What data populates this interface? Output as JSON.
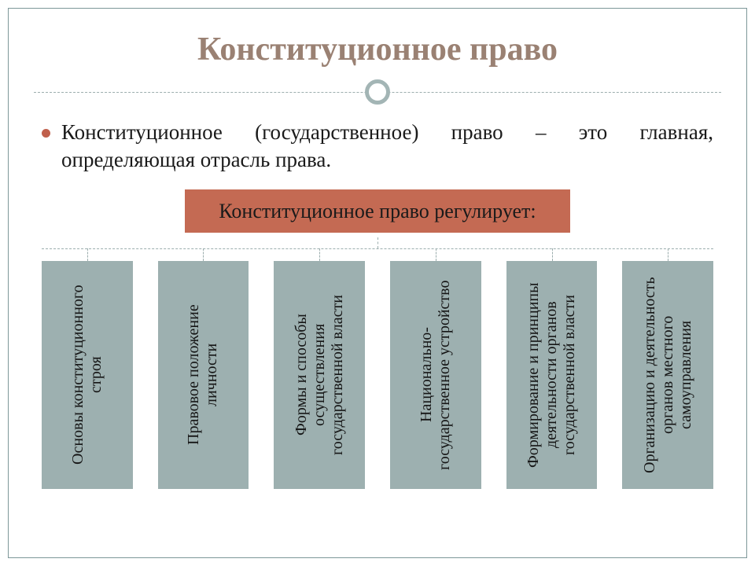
{
  "slide": {
    "title": "Конституционное право",
    "title_color": "#9a8173",
    "title_fontsize": 42,
    "definition": "Конституционное (государственное) право – это главная, определяющая отрасль права.",
    "bullet_color": "#c0604c"
  },
  "diagram": {
    "type": "tree",
    "root": {
      "label": "Конституционное право регулирует:",
      "bg_color": "#c46a53",
      "shadow_color": "#9fb1b1"
    },
    "children_bg_color": "#9db0b0",
    "children_shadow_color": "#7e9698",
    "connector_color": "#9caeae",
    "children": [
      {
        "label": "Основы конституционного строя"
      },
      {
        "label": "Правовое положение личности"
      },
      {
        "label": "Формы и способы осуществления государственной власти"
      },
      {
        "label": "Национально-государственное устройство"
      },
      {
        "label": "Формирование и принципы деятельности органов государственной власти"
      },
      {
        "label": "Организацию и деятельность органов местного самоуправления"
      }
    ]
  },
  "frame": {
    "border_color": "#7d9799",
    "background": "#ffffff"
  }
}
